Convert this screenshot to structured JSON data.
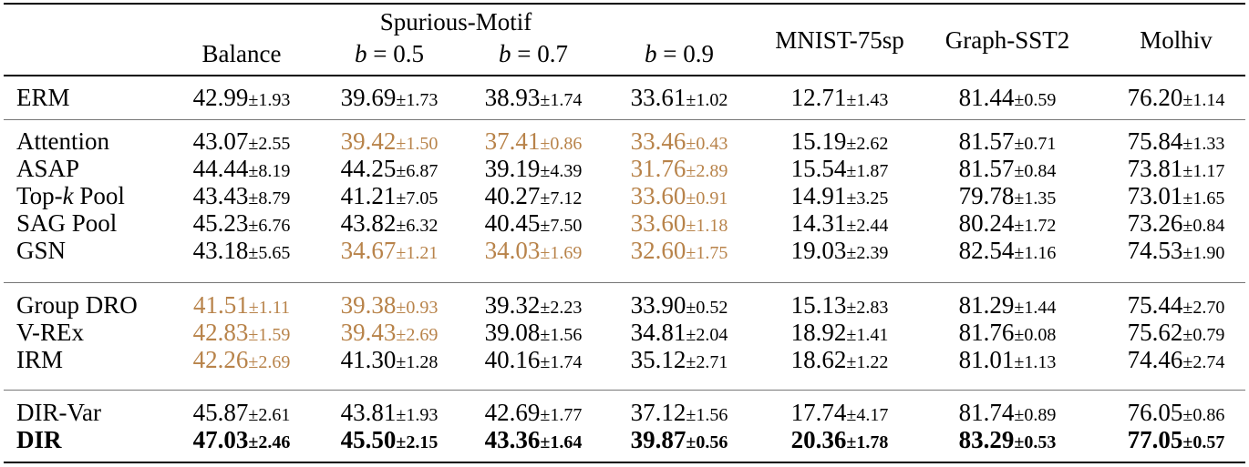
{
  "header": {
    "group_label": "Spurious-Motif",
    "columns": [
      {
        "kind": "text",
        "label": "Balance"
      },
      {
        "kind": "math",
        "var": "b",
        "op": " = ",
        "num": "0.5"
      },
      {
        "kind": "math",
        "var": "b",
        "op": " = ",
        "num": "0.7"
      },
      {
        "kind": "math",
        "var": "b",
        "op": " = ",
        "num": "0.9"
      },
      {
        "kind": "text",
        "label": "MNIST-75sp"
      },
      {
        "kind": "text",
        "label": "Graph-SST2"
      },
      {
        "kind": "text",
        "label": "Molhiv"
      }
    ]
  },
  "highlight_color": "#b8834a",
  "groups": [
    {
      "rows": [
        {
          "label": "ERM",
          "bold": false,
          "cells": [
            {
              "v": "42.99",
              "s": "±1.93"
            },
            {
              "v": "39.69",
              "s": "±1.73"
            },
            {
              "v": "38.93",
              "s": "±1.74"
            },
            {
              "v": "33.61",
              "s": "±1.02"
            },
            {
              "v": "12.71",
              "s": "±1.43"
            },
            {
              "v": "81.44",
              "s": "±0.59"
            },
            {
              "v": "76.20",
              "s": "±1.14"
            }
          ]
        }
      ]
    },
    {
      "rows": [
        {
          "label": "Attention",
          "bold": false,
          "cells": [
            {
              "v": "43.07",
              "s": "±2.55"
            },
            {
              "v": "39.42",
              "s": "±1.50",
              "h": true
            },
            {
              "v": "37.41",
              "s": "±0.86",
              "h": true
            },
            {
              "v": "33.46",
              "s": "±0.43",
              "h": true
            },
            {
              "v": "15.19",
              "s": "±2.62"
            },
            {
              "v": "81.57",
              "s": "±0.71"
            },
            {
              "v": "75.84",
              "s": "±1.33"
            }
          ]
        },
        {
          "label": "ASAP",
          "bold": false,
          "cells": [
            {
              "v": "44.44",
              "s": "±8.19"
            },
            {
              "v": "44.25",
              "s": "±6.87"
            },
            {
              "v": "39.19",
              "s": "±4.39"
            },
            {
              "v": "31.76",
              "s": "±2.89",
              "h": true
            },
            {
              "v": "15.54",
              "s": "±1.87"
            },
            {
              "v": "81.57",
              "s": "±0.84"
            },
            {
              "v": "73.81",
              "s": "±1.17"
            }
          ]
        },
        {
          "label_parts": [
            "Top-",
            "k",
            " Pool"
          ],
          "bold": false,
          "cells": [
            {
              "v": "43.43",
              "s": "±8.79"
            },
            {
              "v": "41.21",
              "s": "±7.05"
            },
            {
              "v": "40.27",
              "s": "±7.12"
            },
            {
              "v": "33.60",
              "s": "±0.91",
              "h": true
            },
            {
              "v": "14.91",
              "s": "±3.25"
            },
            {
              "v": "79.78",
              "s": "±1.35"
            },
            {
              "v": "73.01",
              "s": "±1.65"
            }
          ]
        },
        {
          "label": "SAG Pool",
          "bold": false,
          "cells": [
            {
              "v": "45.23",
              "s": "±6.76"
            },
            {
              "v": "43.82",
              "s": "±6.32"
            },
            {
              "v": "40.45",
              "s": "±7.50"
            },
            {
              "v": "33.60",
              "s": "±1.18",
              "h": true
            },
            {
              "v": "14.31",
              "s": "±2.44"
            },
            {
              "v": "80.24",
              "s": "±1.72"
            },
            {
              "v": "73.26",
              "s": "±0.84"
            }
          ]
        },
        {
          "label": "GSN",
          "bold": false,
          "cells": [
            {
              "v": "43.18",
              "s": "±5.65"
            },
            {
              "v": "34.67",
              "s": "±1.21",
              "h": true
            },
            {
              "v": "34.03",
              "s": "±1.69",
              "h": true
            },
            {
              "v": "32.60",
              "s": "±1.75",
              "h": true
            },
            {
              "v": "19.03",
              "s": "±2.39"
            },
            {
              "v": "82.54",
              "s": "±1.16"
            },
            {
              "v": "74.53",
              "s": "±1.90"
            }
          ]
        }
      ]
    },
    {
      "rows": [
        {
          "label": "Group DRO",
          "bold": false,
          "cells": [
            {
              "v": "41.51",
              "s": "±1.11",
              "h": true
            },
            {
              "v": "39.38",
              "s": "±0.93",
              "h": true
            },
            {
              "v": "39.32",
              "s": "±2.23"
            },
            {
              "v": "33.90",
              "s": "±0.52"
            },
            {
              "v": "15.13",
              "s": "±2.83"
            },
            {
              "v": "81.29",
              "s": "±1.44"
            },
            {
              "v": "75.44",
              "s": "±2.70"
            }
          ]
        },
        {
          "label": "V-REx",
          "bold": false,
          "cells": [
            {
              "v": "42.83",
              "s": "±1.59",
              "h": true
            },
            {
              "v": "39.43",
              "s": "±2.69",
              "h": true
            },
            {
              "v": "39.08",
              "s": "±1.56"
            },
            {
              "v": "34.81",
              "s": "±2.04"
            },
            {
              "v": "18.92",
              "s": "±1.41"
            },
            {
              "v": "81.76",
              "s": "±0.08"
            },
            {
              "v": "75.62",
              "s": "±0.79"
            }
          ]
        },
        {
          "label": "IRM",
          "bold": false,
          "cells": [
            {
              "v": "42.26",
              "s": "±2.69",
              "h": true
            },
            {
              "v": "41.30",
              "s": "±1.28"
            },
            {
              "v": "40.16",
              "s": "±1.74"
            },
            {
              "v": "35.12",
              "s": "±2.71"
            },
            {
              "v": "18.62",
              "s": "±1.22"
            },
            {
              "v": "81.01",
              "s": "±1.13"
            },
            {
              "v": "74.46",
              "s": "±2.74"
            }
          ]
        }
      ]
    },
    {
      "rows": [
        {
          "label": "DIR-Var",
          "bold": false,
          "cells": [
            {
              "v": "45.87",
              "s": "±2.61"
            },
            {
              "v": "43.81",
              "s": "±1.93"
            },
            {
              "v": "42.69",
              "s": "±1.77"
            },
            {
              "v": "37.12",
              "s": "±1.56"
            },
            {
              "v": "17.74",
              "s": "±4.17"
            },
            {
              "v": "81.74",
              "s": "±0.89"
            },
            {
              "v": "76.05",
              "s": "±0.86"
            }
          ]
        },
        {
          "label": "DIR",
          "bold": true,
          "cells": [
            {
              "v": "47.03",
              "s": "±2.46"
            },
            {
              "v": "45.50",
              "s": "±2.15"
            },
            {
              "v": "43.36",
              "s": "±1.64"
            },
            {
              "v": "39.87",
              "s": "±0.56"
            },
            {
              "v": "20.36",
              "s": "±1.78"
            },
            {
              "v": "83.29",
              "s": "±0.53"
            },
            {
              "v": "77.05",
              "s": "±0.57"
            }
          ]
        }
      ]
    }
  ]
}
